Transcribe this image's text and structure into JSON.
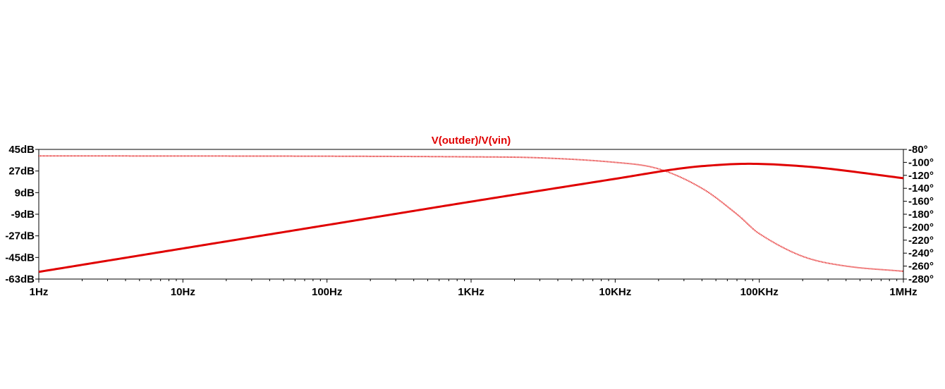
{
  "chart_data": {
    "type": "line",
    "title": "V(outder)/V(vin)",
    "x_scale": "log",
    "xlim": [
      1,
      1000000
    ],
    "x_ticks": [
      {
        "value": 1,
        "label": "1Hz"
      },
      {
        "value": 10,
        "label": "10Hz"
      },
      {
        "value": 100,
        "label": "100Hz"
      },
      {
        "value": 1000,
        "label": "1KHz"
      },
      {
        "value": 10000,
        "label": "10KHz"
      },
      {
        "value": 100000,
        "label": "100KHz"
      },
      {
        "value": 1000000,
        "label": "1MHz"
      }
    ],
    "y_left": {
      "unit": "dB",
      "lim": [
        -63,
        45
      ],
      "ticks": [
        {
          "value": 45,
          "label": "45dB"
        },
        {
          "value": 27,
          "label": "27dB"
        },
        {
          "value": 9,
          "label": "9dB"
        },
        {
          "value": -9,
          "label": "-9dB"
        },
        {
          "value": -27,
          "label": "-27dB"
        },
        {
          "value": -45,
          "label": "-45dB"
        },
        {
          "value": -63,
          "label": "-63dB"
        }
      ]
    },
    "y_right": {
      "unit": "°",
      "lim": [
        -280,
        -80
      ],
      "ticks": [
        {
          "value": -80,
          "label": "-80°"
        },
        {
          "value": -100,
          "label": "-100°"
        },
        {
          "value": -120,
          "label": "-120°"
        },
        {
          "value": -140,
          "label": "-140°"
        },
        {
          "value": -160,
          "label": "-160°"
        },
        {
          "value": -180,
          "label": "-180°"
        },
        {
          "value": -200,
          "label": "-200°"
        },
        {
          "value": -220,
          "label": "-220°"
        },
        {
          "value": -240,
          "label": "-240°"
        },
        {
          "value": -260,
          "label": "-260°"
        },
        {
          "value": -280,
          "label": "-280°"
        }
      ]
    },
    "grid": false,
    "series": [
      {
        "axis": "left",
        "style": "solid-thick",
        "color": "#e00000",
        "x": [
          1,
          10,
          100,
          1000,
          10000,
          30000,
          60000,
          90000,
          150000,
          300000,
          1000000
        ],
        "y": [
          -57,
          -37.5,
          -18,
          1.5,
          20.5,
          29.5,
          32.5,
          33,
          32,
          29,
          21
        ]
      },
      {
        "axis": "right",
        "style": "dotted-thin",
        "color": "#e00000",
        "x": [
          1,
          100,
          1000,
          3000,
          10000,
          20000,
          40000,
          70000,
          100000,
          200000,
          400000,
          1000000
        ],
        "y": [
          -90,
          -90.5,
          -91.5,
          -93,
          -100,
          -110,
          -140,
          -180,
          -210,
          -245,
          -260,
          -268
        ]
      }
    ]
  }
}
